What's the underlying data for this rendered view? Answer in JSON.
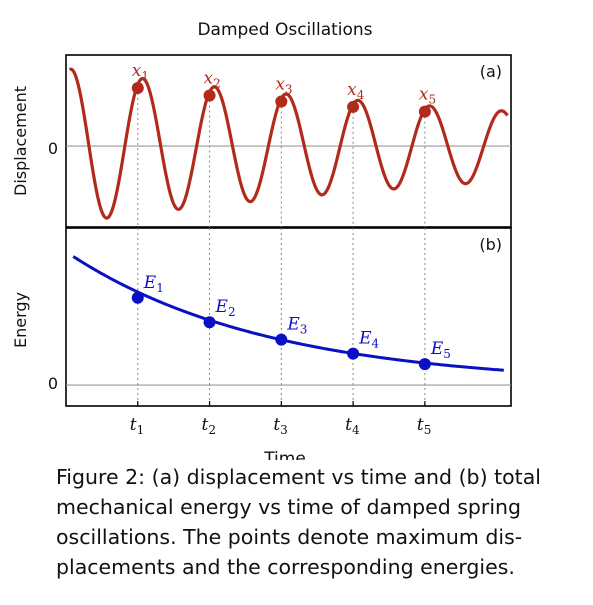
{
  "title": "Damped Oscillations",
  "caption": "Figure 2: (a) displacement vs time and (b) total mechanical energy vs time of damped spring oscillations. The points denote maximum displacements and the corresponding energies.",
  "caption_lines": [
    "Figure 2: (a) displacement vs time and (b) total",
    "mechanical energy vs time of damped spring",
    "oscillations. The points denote maximum dis-",
    "placements and the corresponding energies."
  ],
  "colors": {
    "displacement": "#b22a1c",
    "energy": "#0b10c4",
    "frame": "#000000",
    "zero_line": "#999999",
    "guide": "#888888"
  },
  "chart_data": [
    {
      "type": "line",
      "panel_label": "(a)",
      "ylabel": "Displacement",
      "xlabel": "",
      "y_tick_labels": [
        "0"
      ],
      "xlim": [
        0,
        6.2
      ],
      "ylim": [
        -1.2,
        1.35
      ],
      "curve": {
        "amplitude": 1.15,
        "decay": 0.13,
        "period": 1.0,
        "phase": 0.07
      },
      "series": [
        {
          "labels": [
            "x1",
            "x2",
            "x3",
            "x4",
            "x5"
          ],
          "x": [
            1.0,
            2.0,
            3.0,
            4.0,
            5.0
          ],
          "y": [
            0.86,
            0.75,
            0.66,
            0.58,
            0.51
          ]
        }
      ],
      "grid": false
    },
    {
      "type": "line",
      "panel_label": "(b)",
      "ylabel": "Energy",
      "xlabel": "Time",
      "y_tick_labels": [
        "0"
      ],
      "x_tick_labels": [
        "t1",
        "t2",
        "t3",
        "t4",
        "t5"
      ],
      "xlim": [
        0,
        6.2
      ],
      "ylim": [
        -0.06,
        0.45
      ],
      "curve": {
        "E0": 0.382,
        "decay": 0.36
      },
      "series": [
        {
          "labels": [
            "E1",
            "E2",
            "E3",
            "E4",
            "E5"
          ],
          "x": [
            1.0,
            2.0,
            3.0,
            4.0,
            5.0
          ],
          "y": [
            0.25,
            0.18,
            0.13,
            0.09,
            0.06
          ]
        }
      ],
      "grid": false
    }
  ]
}
